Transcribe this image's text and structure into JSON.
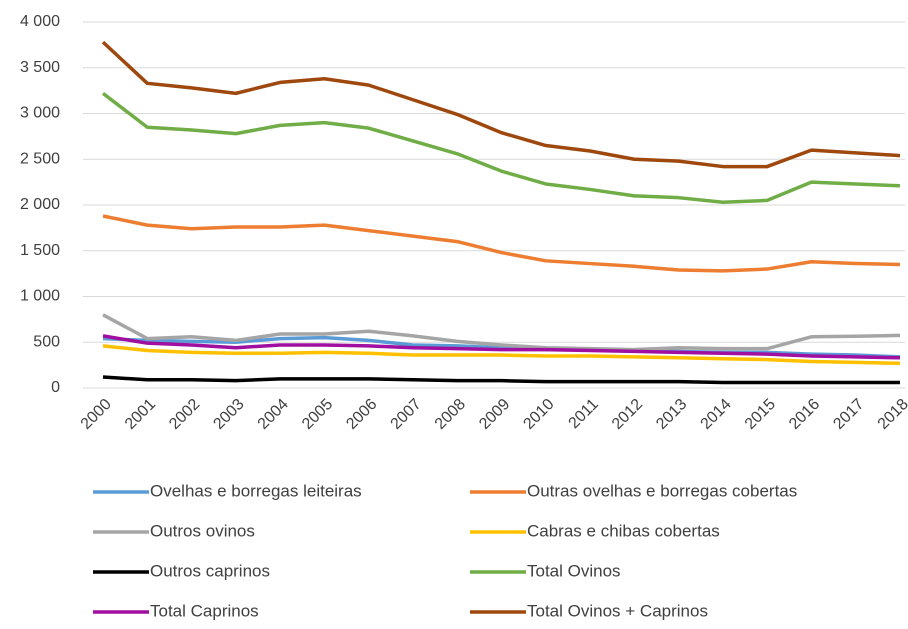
{
  "chart_data": {
    "type": "line",
    "categories": [
      "2000",
      "2001",
      "2002",
      "2003",
      "2004",
      "2005",
      "2006",
      "2007",
      "2008",
      "2009",
      "2010",
      "2011",
      "2012",
      "2013",
      "2014",
      "2015",
      "2016",
      "2017",
      "2018"
    ],
    "series": [
      {
        "name": "Ovelhas e borregas leiteiras",
        "color": "#5b9bd5",
        "values": [
          540,
          520,
          510,
          500,
          540,
          550,
          520,
          470,
          460,
          440,
          420,
          420,
          410,
          400,
          390,
          390,
          370,
          360,
          340
        ]
      },
      {
        "name": "Outras ovelhas e borregas cobertas",
        "color": "#ed7d31",
        "values": [
          1880,
          1780,
          1740,
          1760,
          1760,
          1780,
          1720,
          1660,
          1600,
          1480,
          1390,
          1360,
          1330,
          1290,
          1280,
          1300,
          1380,
          1360,
          1350
        ]
      },
      {
        "name": "Outros ovinos",
        "color": "#a5a5a5",
        "values": [
          800,
          540,
          560,
          520,
          590,
          590,
          620,
          570,
          510,
          470,
          440,
          430,
          420,
          440,
          430,
          430,
          560,
          565,
          575
        ]
      },
      {
        "name": "Cabras e chibas cobertas",
        "color": "#ffc000",
        "values": [
          460,
          410,
          390,
          380,
          380,
          390,
          380,
          360,
          360,
          360,
          350,
          350,
          340,
          330,
          320,
          310,
          290,
          280,
          270
        ]
      },
      {
        "name": "Outros caprinos",
        "color": "#000000",
        "values": [
          120,
          90,
          90,
          80,
          100,
          100,
          100,
          90,
          80,
          80,
          70,
          70,
          70,
          70,
          60,
          60,
          60,
          60,
          60
        ]
      },
      {
        "name": "Total Ovinos",
        "color": "#70ad47",
        "values": [
          3220,
          2850,
          2820,
          2780,
          2870,
          2900,
          2840,
          2700,
          2560,
          2370,
          2230,
          2170,
          2100,
          2080,
          2030,
          2050,
          2250,
          2230,
          2210
        ]
      },
      {
        "name": "Total Caprinos",
        "color": "#a00fa0",
        "values": [
          570,
          490,
          470,
          440,
          470,
          470,
          460,
          440,
          430,
          420,
          420,
          410,
          400,
          390,
          380,
          370,
          350,
          340,
          330
        ]
      },
      {
        "name": "Total Ovinos + Caprinos",
        "color": "#9e480e",
        "values": [
          3780,
          3330,
          3280,
          3220,
          3340,
          3380,
          3310,
          3150,
          2990,
          2790,
          2650,
          2590,
          2500,
          2480,
          2420,
          2420,
          2600,
          2570,
          2540
        ]
      }
    ],
    "ylim": [
      0,
      4000
    ],
    "yticks": [
      0,
      500,
      {
        "value": 1000,
        "label": "1 000"
      },
      {
        "value": 1500,
        "label": "1 500"
      },
      {
        "value": 2000,
        "label": "2 000"
      },
      {
        "value": 2500,
        "label": "2 500"
      },
      {
        "value": 3000,
        "label": "3 000"
      },
      {
        "value": 3500,
        "label": "3 500"
      },
      {
        "value": 4000,
        "label": "4 000"
      }
    ],
    "grid": true
  }
}
